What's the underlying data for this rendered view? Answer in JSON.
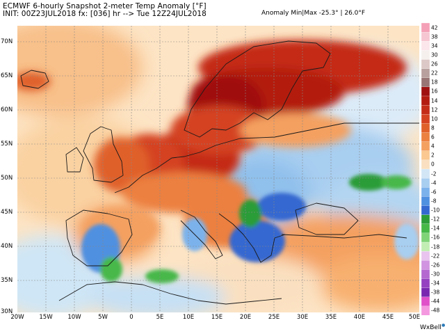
{
  "header": {
    "title": "ECMWF 6-hourly Snapshot 2-meter Temp Anomaly [°F]",
    "init_line": "INIT: 00Z23JUL2018 fx: [036] hr --> Tue 12Z24JUL2018",
    "anomaly_range": "Anomaly Min|Max -25.3° | 26.0°F"
  },
  "axes": {
    "lat_labels": [
      "70N",
      "65N",
      "60N",
      "55N",
      "50N",
      "45N",
      "40N",
      "35N",
      "30N"
    ],
    "lon_labels": [
      "20W",
      "15W",
      "10W",
      "5W",
      "0",
      "5E",
      "10E",
      "15E",
      "20E",
      "25E",
      "30E",
      "35E",
      "40E",
      "45E",
      "50E"
    ]
  },
  "colorbar": {
    "labels": [
      "42",
      "38",
      "34",
      "30",
      "26",
      "22",
      "18",
      "16",
      "14",
      "12",
      "10",
      "8",
      "6",
      "4",
      "2",
      "0",
      "-2",
      "-4",
      "-6",
      "-8",
      "-10",
      "-12",
      "-14",
      "-16",
      "-18",
      "-22",
      "-26",
      "-30",
      "-34",
      "-38",
      "-44",
      "-48"
    ],
    "colors": [
      "#f4a0b6",
      "#f6c6d2",
      "#fbe6ec",
      "#f5f0ee",
      "#dcc8c6",
      "#b8a09e",
      "#987474",
      "#a01010",
      "#b31a10",
      "#c42c18",
      "#d44220",
      "#e0602a",
      "#ec8040",
      "#f4a060",
      "#fac890",
      "#fae0c0",
      "#d2e6f6",
      "#a8cef0",
      "#7cb2ec",
      "#5090e0",
      "#3468d0",
      "#2c9c38",
      "#46b848",
      "#80d478",
      "#c2eeb4",
      "#e8c4ee",
      "#d094e0",
      "#b468d0",
      "#9440c0",
      "#7828b0",
      "#e050c8",
      "#f498e0"
    ]
  },
  "brand": {
    "name": "WxBell",
    "accent": "#2a7ab8"
  }
}
